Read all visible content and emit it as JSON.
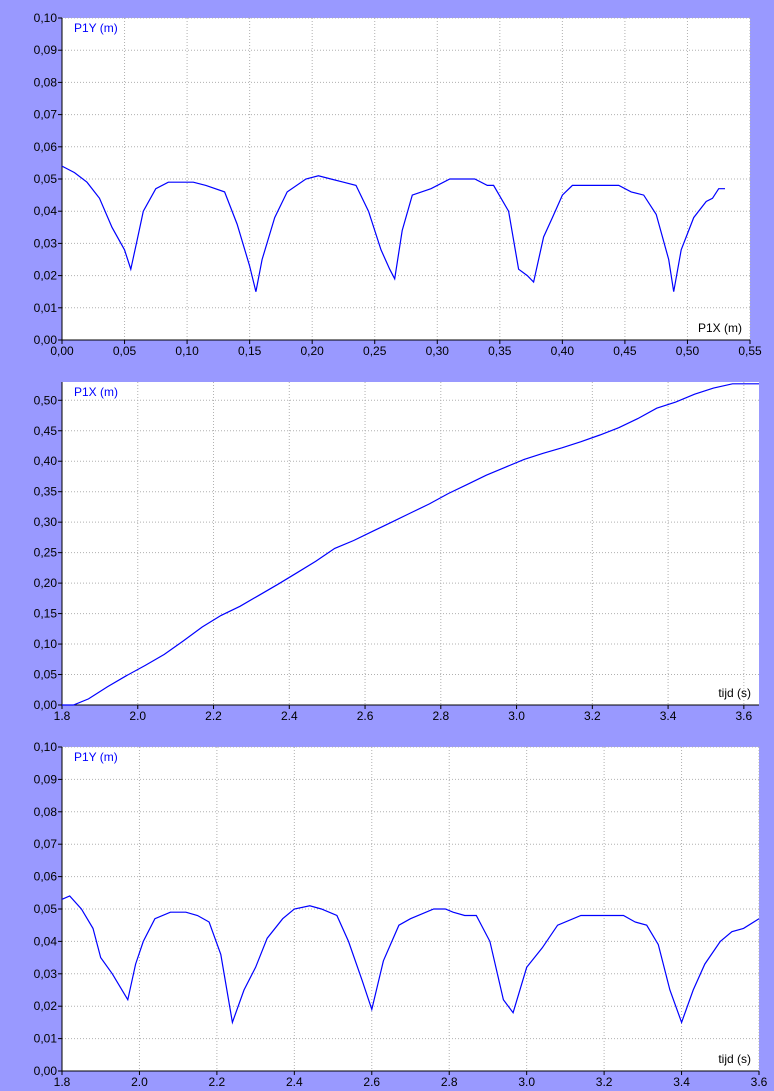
{
  "chart_data": [
    {
      "type": "line",
      "ylabel": "P1Y (m)",
      "xlabel": "P1X (m)",
      "xlim": [
        0,
        0.55
      ],
      "ylim": [
        0,
        0.1
      ],
      "grid": true,
      "line_color": "#0000ff",
      "xticks": [
        0.0,
        0.05,
        0.1,
        0.15,
        0.2,
        0.25,
        0.3,
        0.35,
        0.4,
        0.45,
        0.5,
        0.55
      ],
      "xtick_labels": [
        "0,00",
        "0,05",
        "0,10",
        "0,15",
        "0,20",
        "0,25",
        "0,30",
        "0,35",
        "0,40",
        "0,45",
        "0,50",
        "0,55"
      ],
      "yticks": [
        0.0,
        0.01,
        0.02,
        0.03,
        0.04,
        0.05,
        0.06,
        0.07,
        0.08,
        0.09,
        0.1
      ],
      "ytick_labels": [
        "0,00",
        "0,01",
        "0,02",
        "0,03",
        "0,04",
        "0,05",
        "0,06",
        "0,07",
        "0,08",
        "0,09",
        "0,10"
      ],
      "x": [
        0.0,
        0.01,
        0.02,
        0.03,
        0.04,
        0.05,
        0.055,
        0.06,
        0.065,
        0.075,
        0.085,
        0.095,
        0.105,
        0.115,
        0.13,
        0.14,
        0.15,
        0.155,
        0.16,
        0.17,
        0.18,
        0.195,
        0.205,
        0.215,
        0.225,
        0.235,
        0.245,
        0.255,
        0.262,
        0.266,
        0.272,
        0.28,
        0.295,
        0.31,
        0.325,
        0.33,
        0.34,
        0.345,
        0.357,
        0.365,
        0.372,
        0.377,
        0.385,
        0.392,
        0.4,
        0.408,
        0.42,
        0.43,
        0.445,
        0.455,
        0.465,
        0.475,
        0.485,
        0.489,
        0.495,
        0.505,
        0.515,
        0.52,
        0.525,
        0.53
      ],
      "y": [
        0.054,
        0.052,
        0.049,
        0.044,
        0.035,
        0.028,
        0.022,
        0.031,
        0.04,
        0.047,
        0.049,
        0.049,
        0.049,
        0.048,
        0.046,
        0.036,
        0.023,
        0.015,
        0.025,
        0.038,
        0.046,
        0.05,
        0.051,
        0.05,
        0.049,
        0.048,
        0.04,
        0.028,
        0.022,
        0.019,
        0.034,
        0.045,
        0.047,
        0.05,
        0.05,
        0.05,
        0.048,
        0.048,
        0.04,
        0.022,
        0.02,
        0.018,
        0.032,
        0.038,
        0.045,
        0.048,
        0.048,
        0.048,
        0.048,
        0.046,
        0.045,
        0.039,
        0.025,
        0.015,
        0.028,
        0.038,
        0.043,
        0.044,
        0.047,
        0.047
      ]
    },
    {
      "type": "line",
      "ylabel": "P1X (m)",
      "xlabel": "tijd (s)",
      "xlim": [
        1.8,
        3.64
      ],
      "ylim": [
        0,
        0.53
      ],
      "grid": true,
      "line_color": "#0000ff",
      "xticks": [
        1.8,
        2.0,
        2.2,
        2.4,
        2.6,
        2.8,
        3.0,
        3.2,
        3.4,
        3.6
      ],
      "xtick_labels": [
        "1.8",
        "2.0",
        "2.2",
        "2.4",
        "2.6",
        "2.8",
        "3.0",
        "3.2",
        "3.4",
        "3.6"
      ],
      "yticks": [
        0.0,
        0.05,
        0.1,
        0.15,
        0.2,
        0.25,
        0.3,
        0.35,
        0.4,
        0.45,
        0.5
      ],
      "ytick_labels": [
        "0,00",
        "0,05",
        "0,10",
        "0,15",
        "0,20",
        "0,25",
        "0,30",
        "0,35",
        "0,40",
        "0,45",
        "0,50"
      ],
      "x": [
        1.8,
        1.83,
        1.87,
        1.92,
        1.97,
        2.02,
        2.07,
        2.12,
        2.17,
        2.22,
        2.27,
        2.32,
        2.37,
        2.42,
        2.47,
        2.52,
        2.57,
        2.62,
        2.67,
        2.72,
        2.77,
        2.82,
        2.87,
        2.92,
        2.97,
        3.02,
        3.07,
        3.12,
        3.17,
        3.22,
        3.27,
        3.32,
        3.37,
        3.42,
        3.47,
        3.52,
        3.57,
        3.62,
        3.64
      ],
      "y": [
        0.0,
        0.0,
        0.01,
        0.03,
        0.048,
        0.065,
        0.083,
        0.105,
        0.128,
        0.147,
        0.162,
        0.18,
        0.198,
        0.217,
        0.236,
        0.257,
        0.27,
        0.285,
        0.3,
        0.315,
        0.33,
        0.347,
        0.362,
        0.377,
        0.39,
        0.403,
        0.413,
        0.422,
        0.432,
        0.443,
        0.455,
        0.47,
        0.487,
        0.497,
        0.51,
        0.52,
        0.527,
        0.527,
        0.527
      ]
    },
    {
      "type": "line",
      "ylabel": "P1Y (m)",
      "xlabel": "tijd (s)",
      "xlim": [
        1.8,
        3.6
      ],
      "ylim": [
        0,
        0.1
      ],
      "grid": true,
      "line_color": "#0000ff",
      "xticks": [
        1.8,
        2.0,
        2.2,
        2.4,
        2.6,
        2.8,
        3.0,
        3.2,
        3.4,
        3.6
      ],
      "xtick_labels": [
        "1.8",
        "2.0",
        "2.2",
        "2.4",
        "2.6",
        "2.8",
        "3.0",
        "3.2",
        "3.4",
        "3.6"
      ],
      "yticks": [
        0.0,
        0.01,
        0.02,
        0.03,
        0.04,
        0.05,
        0.06,
        0.07,
        0.08,
        0.09,
        0.1
      ],
      "ytick_labels": [
        "0,00",
        "0,01",
        "0,02",
        "0,03",
        "0,04",
        "0,05",
        "0,06",
        "0,07",
        "0,08",
        "0,09",
        "0,10"
      ],
      "x": [
        1.8,
        1.82,
        1.85,
        1.88,
        1.9,
        1.93,
        1.97,
        1.99,
        2.01,
        2.04,
        2.08,
        2.12,
        2.15,
        2.18,
        2.21,
        2.24,
        2.27,
        2.3,
        2.33,
        2.37,
        2.4,
        2.44,
        2.47,
        2.51,
        2.54,
        2.575,
        2.6,
        2.63,
        2.67,
        2.7,
        2.76,
        2.79,
        2.81,
        2.84,
        2.87,
        2.905,
        2.94,
        2.965,
        3.0,
        3.04,
        3.08,
        3.14,
        3.19,
        3.22,
        3.25,
        3.28,
        3.31,
        3.34,
        3.37,
        3.4,
        3.43,
        3.46,
        3.5,
        3.53,
        3.56,
        3.6
      ],
      "y": [
        0.053,
        0.054,
        0.05,
        0.044,
        0.035,
        0.03,
        0.022,
        0.033,
        0.04,
        0.047,
        0.049,
        0.049,
        0.048,
        0.046,
        0.036,
        0.015,
        0.025,
        0.032,
        0.041,
        0.047,
        0.05,
        0.051,
        0.05,
        0.048,
        0.04,
        0.028,
        0.019,
        0.034,
        0.045,
        0.047,
        0.05,
        0.05,
        0.049,
        0.048,
        0.048,
        0.04,
        0.022,
        0.018,
        0.032,
        0.038,
        0.045,
        0.048,
        0.048,
        0.048,
        0.048,
        0.046,
        0.045,
        0.039,
        0.025,
        0.015,
        0.025,
        0.033,
        0.04,
        0.043,
        0.044,
        0.047
      ]
    }
  ]
}
